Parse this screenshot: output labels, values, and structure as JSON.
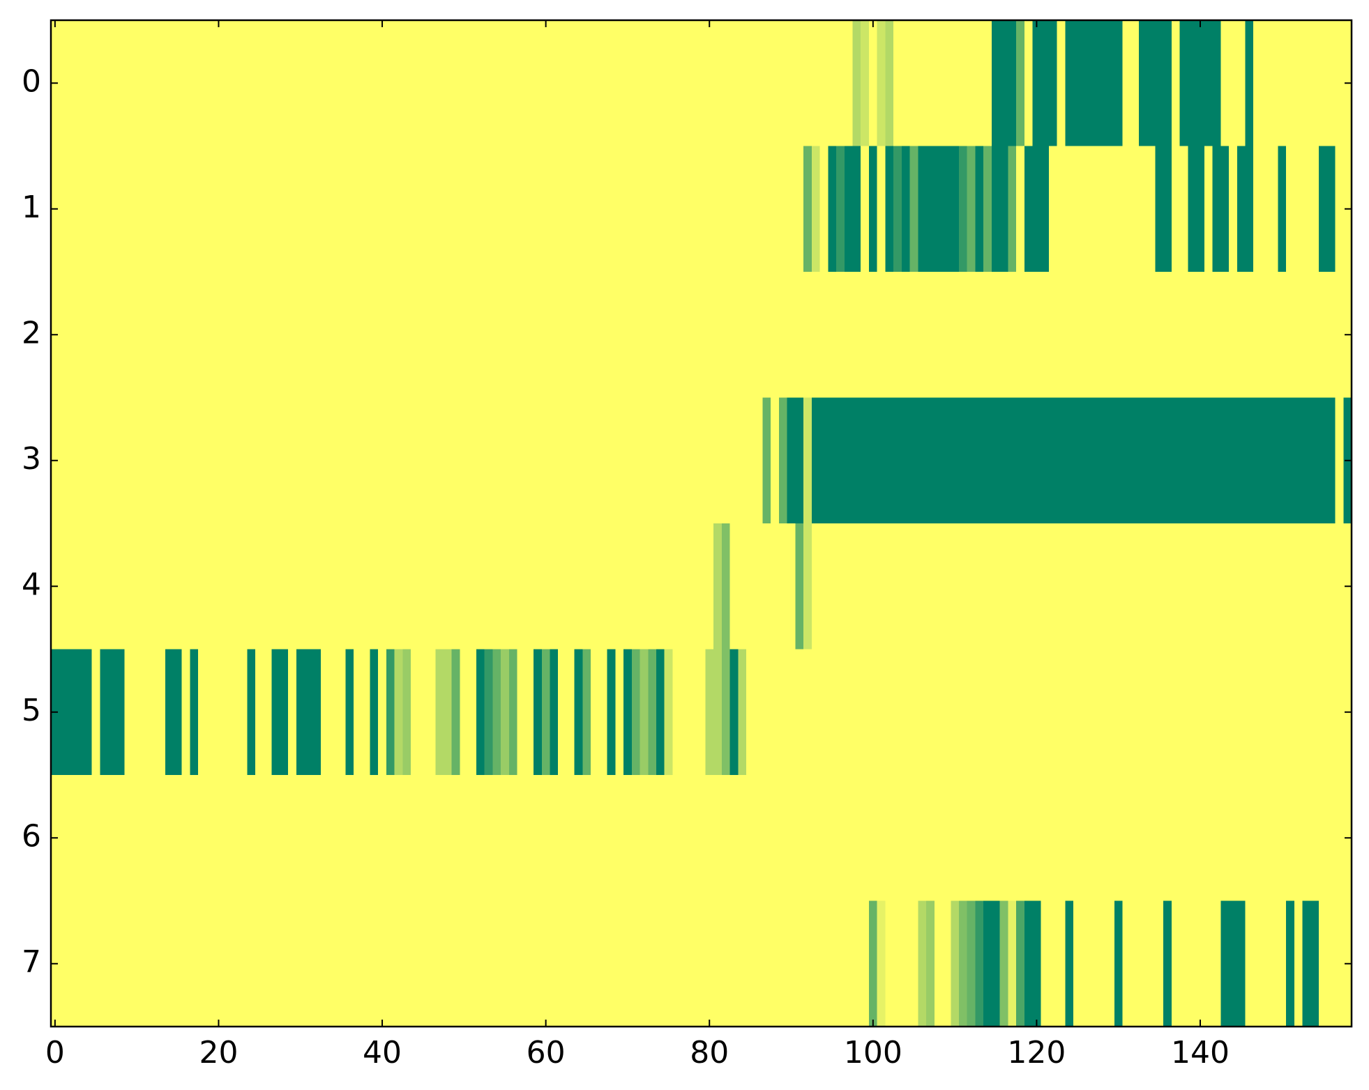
{
  "chart_data": {
    "type": "heatmap",
    "colormap": [
      "#ffff66",
      "#008066"
    ],
    "xlim": [
      -0.5,
      158.5
    ],
    "ylim": [
      7.5,
      -0.5
    ],
    "xticks": [
      0,
      20,
      40,
      60,
      80,
      100,
      120,
      140
    ],
    "yticks": [
      0,
      1,
      2,
      3,
      4,
      5,
      6,
      7
    ],
    "z": [
      [
        0,
        0,
        0,
        0,
        0,
        0,
        0,
        0,
        0,
        0,
        0,
        0,
        0,
        0,
        0,
        0,
        0,
        0,
        0,
        0,
        0,
        0,
        0,
        0,
        0,
        0,
        0,
        0,
        0,
        0,
        0,
        0,
        0,
        0,
        0,
        0,
        0,
        0,
        0,
        0,
        0,
        0,
        0,
        0,
        0,
        0,
        0,
        0,
        0,
        0,
        0,
        0,
        0,
        0,
        0,
        0,
        0,
        0,
        0,
        0,
        0,
        0,
        0,
        0,
        0,
        0,
        0,
        0,
        0,
        0,
        0,
        0,
        0,
        0,
        0,
        0,
        0,
        0,
        0,
        0,
        0,
        0,
        0,
        0,
        0,
        0,
        0,
        0,
        0,
        0,
        0,
        0,
        0,
        0,
        0,
        0,
        0,
        0,
        0.3,
        0.2,
        0,
        0.2,
        0.3,
        0,
        0,
        0,
        0,
        0,
        0,
        0,
        0,
        0,
        0,
        0,
        0,
        1,
        1,
        1,
        0.6,
        0,
        1,
        1,
        1,
        0,
        1,
        1,
        1,
        1,
        1,
        1,
        1,
        0,
        0,
        1,
        1,
        1,
        1,
        0,
        1,
        1,
        1,
        1,
        1,
        0,
        0,
        0,
        1,
        0,
        0,
        0,
        0,
        0,
        0,
        0,
        0,
        0,
        0,
        0,
        0
      ],
      [
        0,
        0,
        0,
        0,
        0,
        0,
        0,
        0,
        0,
        0,
        0,
        0,
        0,
        0,
        0,
        0,
        0,
        0,
        0,
        0,
        0,
        0,
        0,
        0,
        0,
        0,
        0,
        0,
        0,
        0,
        0,
        0,
        0,
        0,
        0,
        0,
        0,
        0,
        0,
        0,
        0,
        0,
        0,
        0,
        0,
        0,
        0,
        0,
        0,
        0,
        0,
        0,
        0,
        0,
        0,
        0,
        0,
        0,
        0,
        0,
        0,
        0,
        0,
        0,
        0,
        0,
        0,
        0,
        0,
        0,
        0,
        0,
        0,
        0,
        0,
        0,
        0,
        0,
        0,
        0,
        0,
        0,
        0,
        0,
        0,
        0,
        0,
        0,
        0,
        0,
        0,
        0,
        0.6,
        0.2,
        0,
        1,
        0.8,
        1,
        1,
        0,
        1,
        0,
        1,
        0.8,
        1,
        0.6,
        1,
        1,
        1,
        1,
        1,
        0.8,
        0.6,
        1,
        0.6,
        1,
        1,
        0.6,
        0,
        1,
        1,
        1,
        0,
        0,
        0,
        0,
        0,
        0,
        0,
        0,
        0,
        0,
        0,
        0,
        0,
        1,
        1,
        0,
        0,
        1,
        1,
        0,
        1,
        1,
        0,
        1,
        1,
        0,
        0,
        0,
        1,
        0,
        0,
        0,
        0,
        1,
        1,
        0,
        0
      ],
      [
        0,
        0,
        0,
        0,
        0,
        0,
        0,
        0,
        0,
        0,
        0,
        0,
        0,
        0,
        0,
        0,
        0,
        0,
        0,
        0,
        0,
        0,
        0,
        0,
        0,
        0,
        0,
        0,
        0,
        0,
        0,
        0,
        0,
        0,
        0,
        0,
        0,
        0,
        0,
        0,
        0,
        0,
        0,
        0,
        0,
        0,
        0,
        0,
        0,
        0,
        0,
        0,
        0,
        0,
        0,
        0,
        0,
        0,
        0,
        0,
        0,
        0,
        0,
        0,
        0,
        0,
        0,
        0,
        0,
        0,
        0,
        0,
        0,
        0,
        0,
        0,
        0,
        0,
        0,
        0,
        0,
        0,
        0,
        0,
        0,
        0,
        0,
        0,
        0,
        0,
        0,
        0,
        0,
        0,
        0,
        0,
        0,
        0,
        0,
        0,
        0,
        0,
        0,
        0,
        0,
        0,
        0,
        0,
        0,
        0,
        0,
        0,
        0,
        0,
        0,
        0,
        0,
        0,
        0,
        0,
        0,
        0,
        0,
        0,
        0,
        0,
        0,
        0,
        0,
        0,
        0,
        0,
        0,
        0,
        0,
        0,
        0,
        0,
        0,
        0,
        0,
        0,
        0,
        0,
        0,
        0,
        0,
        0,
        0,
        0,
        0,
        0,
        0,
        0,
        0,
        0,
        0,
        0,
        0
      ],
      [
        0,
        0,
        0,
        0,
        0,
        0,
        0,
        0,
        0,
        0,
        0,
        0,
        0,
        0,
        0,
        0,
        0,
        0,
        0,
        0,
        0,
        0,
        0,
        0,
        0,
        0,
        0,
        0,
        0,
        0,
        0,
        0,
        0,
        0,
        0,
        0,
        0,
        0,
        0,
        0,
        0,
        0,
        0,
        0,
        0,
        0,
        0,
        0,
        0,
        0,
        0,
        0,
        0,
        0,
        0,
        0,
        0,
        0,
        0,
        0,
        0,
        0,
        0,
        0,
        0,
        0,
        0,
        0,
        0,
        0,
        0,
        0,
        0,
        0,
        0,
        0,
        0,
        0,
        0,
        0,
        0,
        0,
        0,
        0,
        0,
        0,
        0,
        0.6,
        0,
        0.6,
        1,
        1,
        0.2,
        1,
        1,
        1,
        1,
        1,
        1,
        1,
        1,
        1,
        1,
        1,
        1,
        1,
        1,
        1,
        1,
        1,
        1,
        1,
        1,
        1,
        1,
        1,
        1,
        1,
        1,
        1,
        1,
        1,
        1,
        1,
        1,
        1,
        1,
        1,
        1,
        1,
        1,
        1,
        1,
        1,
        1,
        1,
        1,
        1,
        1,
        1,
        1,
        1,
        1,
        1,
        1,
        1,
        1,
        1,
        1,
        1,
        1,
        1,
        1,
        1,
        1,
        1,
        1,
        0,
        1
      ],
      [
        0,
        0,
        0,
        0,
        0,
        0,
        0,
        0,
        0,
        0,
        0,
        0,
        0,
        0,
        0,
        0,
        0,
        0,
        0,
        0,
        0,
        0,
        0,
        0,
        0,
        0,
        0,
        0,
        0,
        0,
        0,
        0,
        0,
        0,
        0,
        0,
        0,
        0,
        0,
        0,
        0,
        0,
        0,
        0,
        0,
        0,
        0,
        0,
        0,
        0,
        0,
        0,
        0,
        0,
        0,
        0,
        0,
        0,
        0,
        0,
        0,
        0,
        0,
        0,
        0,
        0,
        0,
        0,
        0,
        0,
        0,
        0,
        0,
        0,
        0,
        0,
        0,
        0,
        0,
        0,
        0,
        0.3,
        0.5,
        0,
        0,
        0,
        0,
        0,
        0,
        0,
        0,
        0.6,
        0.2,
        0,
        0,
        0,
        0,
        0,
        0,
        0,
        0,
        0,
        0,
        0,
        0,
        0,
        0,
        0,
        0,
        0,
        0,
        0,
        0,
        0,
        0,
        0,
        0,
        0,
        0,
        0,
        0,
        0,
        0,
        0,
        0,
        0,
        0,
        0,
        0,
        0,
        0,
        0,
        0,
        0,
        0,
        0,
        0,
        0,
        0,
        0,
        0,
        0,
        0,
        0,
        0,
        0,
        0,
        0,
        0,
        0,
        0,
        0,
        0,
        0,
        0,
        0,
        0,
        0,
        0
      ],
      [
        1,
        1,
        1,
        1,
        1,
        0,
        1,
        1,
        1,
        0,
        0,
        0,
        0,
        0,
        1,
        1,
        0,
        1,
        0,
        0,
        0,
        0,
        0,
        0,
        1,
        0,
        0,
        1,
        1,
        0,
        1,
        1,
        1,
        0,
        0,
        0,
        1,
        0,
        0,
        1,
        0,
        0.8,
        0.3,
        0.4,
        0,
        0,
        0,
        0.3,
        0.3,
        0.6,
        0,
        0,
        1,
        0.8,
        0.6,
        0.4,
        0.6,
        0,
        0,
        1,
        0.6,
        1,
        0,
        0,
        1,
        0.6,
        0,
        0,
        1,
        0,
        1,
        0.6,
        0.4,
        0.6,
        1,
        0.2,
        0,
        0,
        0,
        0,
        0.3,
        0.3,
        0.5,
        1,
        0.3,
        0,
        0,
        0,
        0,
        0,
        0,
        0,
        0,
        0,
        0,
        0,
        0,
        0,
        0,
        0,
        0,
        0,
        0,
        0,
        0,
        0,
        0,
        0,
        0,
        0,
        0,
        0,
        0,
        0,
        0,
        0,
        0,
        0,
        0,
        0,
        0,
        0,
        0,
        0,
        0,
        0,
        0,
        0,
        0,
        0,
        0,
        0,
        0,
        0,
        0,
        0,
        0,
        0,
        0,
        0,
        0,
        0,
        0,
        0,
        0,
        0,
        0,
        0,
        0,
        0,
        0,
        0,
        0,
        0,
        0,
        0,
        0,
        0,
        0
      ],
      [
        0,
        0,
        0,
        0,
        0,
        0,
        0,
        0,
        0,
        0,
        0,
        0,
        0,
        0,
        0,
        0,
        0,
        0,
        0,
        0,
        0,
        0,
        0,
        0,
        0,
        0,
        0,
        0,
        0,
        0,
        0,
        0,
        0,
        0,
        0,
        0,
        0,
        0,
        0,
        0,
        0,
        0,
        0,
        0,
        0,
        0,
        0,
        0,
        0,
        0,
        0,
        0,
        0,
        0,
        0,
        0,
        0,
        0,
        0,
        0,
        0,
        0,
        0,
        0,
        0,
        0,
        0,
        0,
        0,
        0,
        0,
        0,
        0,
        0,
        0,
        0,
        0,
        0,
        0,
        0,
        0,
        0,
        0,
        0,
        0,
        0,
        0,
        0,
        0,
        0,
        0,
        0,
        0,
        0,
        0,
        0,
        0,
        0,
        0,
        0,
        0,
        0,
        0,
        0,
        0,
        0,
        0,
        0,
        0,
        0,
        0,
        0,
        0,
        0,
        0,
        0,
        0,
        0,
        0,
        0,
        0,
        0,
        0,
        0,
        0,
        0,
        0,
        0,
        0,
        0,
        0,
        0,
        0,
        0,
        0,
        0,
        0,
        0,
        0,
        0,
        0,
        0,
        0,
        0,
        0,
        0,
        0,
        0,
        0,
        0,
        0,
        0,
        0,
        0,
        0,
        0,
        0,
        0,
        0
      ],
      [
        0,
        0,
        0,
        0,
        0,
        0,
        0,
        0,
        0,
        0,
        0,
        0,
        0,
        0,
        0,
        0,
        0,
        0,
        0,
        0,
        0,
        0,
        0,
        0,
        0,
        0,
        0,
        0,
        0,
        0,
        0,
        0,
        0,
        0,
        0,
        0,
        0,
        0,
        0,
        0,
        0,
        0,
        0,
        0,
        0,
        0,
        0,
        0,
        0,
        0,
        0,
        0,
        0,
        0,
        0,
        0,
        0,
        0,
        0,
        0,
        0,
        0,
        0,
        0,
        0,
        0,
        0,
        0,
        0,
        0,
        0,
        0,
        0,
        0,
        0,
        0,
        0,
        0,
        0,
        0,
        0,
        0,
        0,
        0,
        0,
        0,
        0,
        0,
        0,
        0,
        0,
        0,
        0,
        0,
        0,
        0,
        0,
        0,
        0,
        0,
        0.6,
        0.1,
        0,
        0,
        0,
        0,
        0.3,
        0.4,
        0,
        0,
        0.3,
        0.5,
        0.6,
        0.8,
        1,
        1,
        0.5,
        0.1,
        0.7,
        1,
        1,
        0,
        0,
        0,
        1,
        0,
        0,
        0,
        0,
        0,
        1,
        0,
        0,
        0,
        0,
        0,
        1,
        0,
        0,
        0,
        0,
        0,
        0,
        1,
        1,
        1,
        0,
        0,
        0,
        0,
        0,
        1,
        0,
        1,
        1,
        0,
        0,
        0,
        0
      ]
    ]
  }
}
